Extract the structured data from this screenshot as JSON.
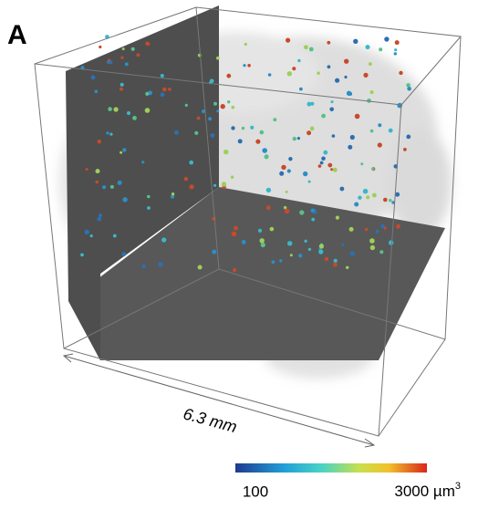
{
  "panel_label": "A",
  "scale_bar": {
    "label": "6.3 mm"
  },
  "colorbar": {
    "min_label": "100",
    "max_label": "3000 µm",
    "max_label_superscript": "3"
  }
}
